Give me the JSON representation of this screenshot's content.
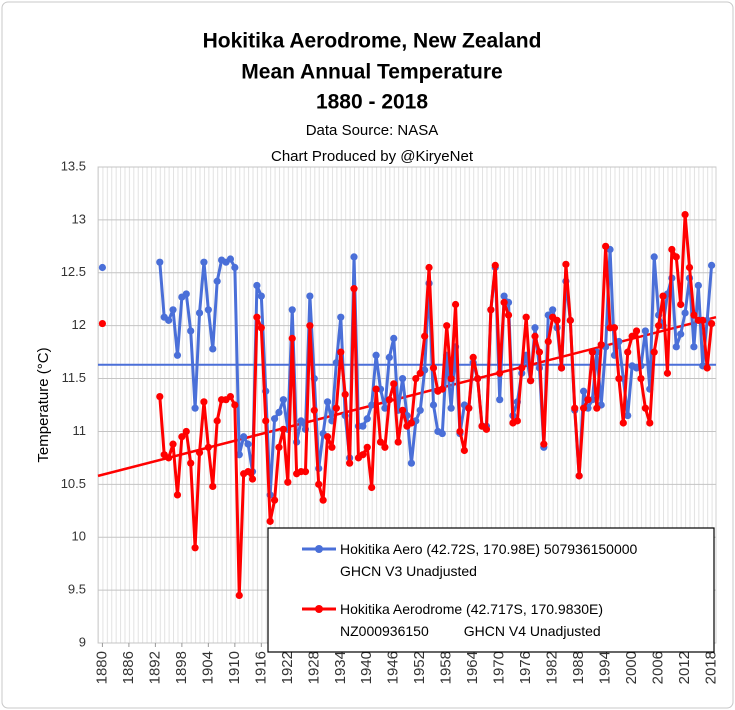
{
  "chart_data": {
    "type": "line",
    "title": [
      "Hokitika Aerodrome, New Zealand",
      "Mean Annual Temperature",
      "1880 - 2018"
    ],
    "subtitle": [
      "Data Source: NASA",
      "Chart Produced by @KiryeNet"
    ],
    "y_label": "Temperature (°C)",
    "x": [
      1880,
      1881,
      1882,
      1883,
      1884,
      1885,
      1886,
      1887,
      1888,
      1889,
      1890,
      1891,
      1892,
      1893,
      1894,
      1895,
      1896,
      1897,
      1898,
      1899,
      1900,
      1901,
      1902,
      1903,
      1904,
      1905,
      1906,
      1907,
      1908,
      1909,
      1910,
      1911,
      1912,
      1913,
      1914,
      1915,
      1916,
      1917,
      1918,
      1919,
      1920,
      1921,
      1922,
      1923,
      1924,
      1925,
      1926,
      1927,
      1928,
      1929,
      1930,
      1931,
      1932,
      1933,
      1934,
      1935,
      1936,
      1937,
      1938,
      1939,
      1940,
      1941,
      1942,
      1943,
      1944,
      1945,
      1946,
      1947,
      1948,
      1949,
      1950,
      1951,
      1952,
      1953,
      1954,
      1955,
      1956,
      1957,
      1958,
      1959,
      1960,
      1961,
      1962,
      1963,
      1964,
      1965,
      1966,
      1967,
      1968,
      1969,
      1970,
      1971,
      1972,
      1973,
      1974,
      1975,
      1976,
      1977,
      1978,
      1979,
      1980,
      1981,
      1982,
      1983,
      1984,
      1985,
      1986,
      1987,
      1988,
      1989,
      1990,
      1991,
      1992,
      1993,
      1994,
      1995,
      1996,
      1997,
      1998,
      1999,
      2000,
      2001,
      2002,
      2003,
      2004,
      2005,
      2006,
      2007,
      2008,
      2009,
      2010,
      2011,
      2012,
      2013,
      2014,
      2015,
      2016,
      2017,
      2018
    ],
    "series": [
      {
        "name": "Hokitika Aero (42.72S, 170.98E) 507936150000\nGHCN V3 Unadjusted",
        "color": "#4a6fd8",
        "values": [
          12.55,
          null,
          null,
          null,
          null,
          null,
          null,
          null,
          null,
          null,
          null,
          null,
          null,
          12.6,
          12.08,
          12.05,
          12.15,
          11.72,
          12.27,
          12.3,
          11.95,
          11.22,
          12.12,
          12.6,
          12.15,
          11.78,
          12.42,
          12.62,
          12.6,
          12.63,
          12.55,
          10.78,
          10.95,
          10.88,
          10.62,
          12.38,
          12.28,
          11.38,
          10.4,
          11.12,
          11.18,
          11.3,
          11.02,
          12.15,
          10.9,
          11.1,
          11.02,
          12.28,
          11.5,
          10.65,
          10.98,
          11.28,
          11.1,
          11.65,
          12.08,
          11.15,
          10.75,
          12.65,
          11.05,
          11.05,
          11.12,
          11.25,
          11.72,
          11.4,
          11.22,
          11.7,
          11.88,
          11.2,
          11.5,
          11.15,
          10.7,
          11.1,
          11.2,
          11.58,
          12.4,
          11.25,
          11.0,
          10.98,
          11.72,
          11.22,
          11.8,
          10.98,
          11.25,
          11.22,
          11.65,
          11.5,
          11.05,
          11.05,
          12.15,
          12.55,
          11.3,
          12.28,
          12.22,
          11.15,
          11.28,
          11.55,
          11.72,
          11.48,
          11.98,
          11.6,
          10.85,
          12.1,
          12.15,
          11.98,
          11.6,
          12.42,
          12.05,
          11.2,
          10.58,
          11.38,
          11.22,
          11.3,
          11.75,
          11.25,
          11.8,
          12.72,
          11.72,
          11.85,
          11.5,
          11.15,
          11.62,
          11.6,
          11.62,
          11.95,
          11.4,
          12.65,
          12.1,
          12.0,
          12.3,
          12.45,
          11.8,
          11.92,
          12.12,
          12.45,
          11.8,
          12.38,
          11.62,
          12.05,
          12.57
        ]
      },
      {
        "name": "Hokitika Aerodrome (42.717S, 170.9830E)\nNZ000936150         GHCN V4 Unadjusted",
        "color": "#ff0000",
        "values": [
          12.02,
          null,
          null,
          null,
          null,
          null,
          null,
          null,
          null,
          null,
          null,
          null,
          null,
          11.33,
          10.78,
          10.75,
          10.88,
          10.4,
          10.95,
          11.0,
          10.7,
          9.9,
          10.8,
          11.28,
          10.85,
          10.48,
          11.1,
          11.3,
          11.3,
          11.33,
          11.25,
          9.45,
          10.6,
          10.62,
          10.55,
          12.08,
          11.98,
          11.1,
          10.15,
          10.35,
          10.85,
          11.02,
          10.52,
          11.88,
          10.6,
          10.62,
          10.62,
          12.0,
          11.2,
          10.5,
          10.35,
          10.95,
          10.85,
          11.22,
          11.75,
          11.35,
          10.7,
          12.35,
          10.75,
          10.78,
          10.85,
          10.47,
          11.4,
          10.9,
          10.85,
          11.3,
          11.45,
          10.9,
          11.2,
          11.05,
          11.08,
          11.5,
          11.55,
          11.9,
          12.55,
          11.6,
          11.38,
          11.4,
          12.0,
          11.5,
          12.2,
          11.0,
          10.82,
          11.22,
          11.7,
          11.5,
          11.05,
          11.02,
          12.15,
          12.57,
          11.55,
          12.22,
          12.1,
          11.08,
          11.1,
          11.6,
          12.08,
          11.48,
          11.9,
          11.75,
          10.88,
          11.85,
          12.08,
          12.05,
          11.6,
          12.58,
          12.05,
          11.22,
          10.58,
          11.22,
          11.3,
          11.75,
          11.22,
          11.82,
          12.75,
          11.98,
          11.98,
          11.5,
          11.08,
          11.75,
          11.9,
          11.95,
          11.5,
          11.22,
          11.08,
          11.75,
          12.0,
          12.28,
          11.55,
          12.72,
          12.65,
          12.2,
          13.05,
          12.55,
          12.1,
          12.05,
          12.05,
          11.6,
          12.02
        ]
      }
    ],
    "mean_line": {
      "value": 11.63,
      "color": "#4a6fd8"
    },
    "trend_line": {
      "x": [
        1879,
        2019
      ],
      "values": [
        10.58,
        12.08
      ],
      "color": "#ff0000"
    },
    "xlim": [
      1879,
      2019
    ],
    "ylim": [
      9,
      13.5
    ],
    "xticks": [
      1880,
      1886,
      1892,
      1898,
      1904,
      1910,
      1916,
      1922,
      1928,
      1934,
      1940,
      1946,
      1952,
      1958,
      1964,
      1970,
      1976,
      1982,
      1988,
      1994,
      2000,
      2006,
      2012,
      2018
    ],
    "yticks": [
      9,
      9.5,
      10,
      10.5,
      11,
      11.5,
      12,
      12.5,
      13,
      13.5
    ],
    "grid": true
  }
}
